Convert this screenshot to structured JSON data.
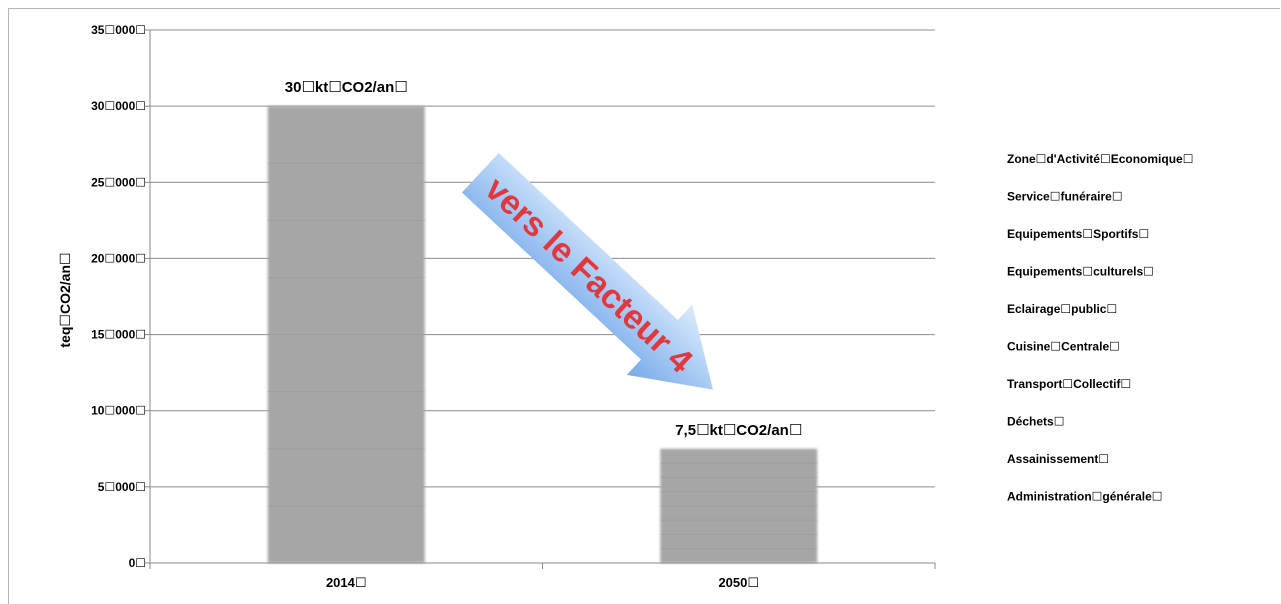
{
  "chart_data": {
    "type": "bar",
    "categories": [
      "2014☐",
      "2050☐"
    ],
    "values": [
      30000,
      7500
    ],
    "data_labels": [
      "30☐kt☐CO2/an☐",
      "7,5☐kt☐CO2/an☐"
    ],
    "title": "",
    "xlabel": "",
    "ylabel": "teq☐CO2/an☐",
    "ylim": [
      0,
      35000
    ],
    "yticks": [
      0,
      5000,
      10000,
      15000,
      20000,
      25000,
      30000,
      35000
    ],
    "ytick_labels": [
      "0☐",
      "5☐000☐",
      "10☐000☐",
      "15☐000☐",
      "20☐000☐",
      "25☐000☐",
      "30☐000☐",
      "35☐000☐"
    ],
    "grid": true,
    "legend_position": "right",
    "legend": [
      "Zone☐d'Activité☐Economique☐",
      "Service☐funéraire☐",
      "Equipements☐Sportifs☐",
      "Equipements☐culturels☐",
      "Eclairage☐public☐",
      "Cuisine☐Centrale☐",
      "Transport☐Collectif☐",
      "Déchets☐",
      "Assainissement☐",
      "Administration☐générale☐"
    ],
    "annotations": [
      "vers le Facteur 4"
    ]
  },
  "colors": {
    "bar": "#a6a6a6",
    "grid": "#8c8c8c",
    "arrow_light": "#d8e8fb",
    "arrow_dark": "#7fb0ee",
    "arrow_text": "#e0383e"
  }
}
